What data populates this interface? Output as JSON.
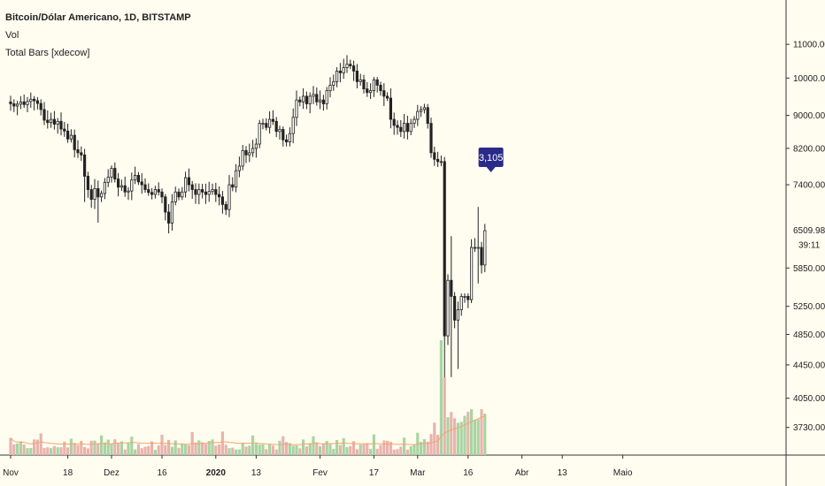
{
  "legend": {
    "title": "Bitcoin/Dólar Americano, 1D, BITSTAMP",
    "vol": "Vol",
    "indicator": "Total Bars [xdecow]"
  },
  "colors": {
    "background": "#fffdf0",
    "candle_up": "#ffffff",
    "candle_down": "#222222",
    "vol_up": "#a9d4a3",
    "vol_down": "#e8b4ae",
    "vol_ma": "#f2a46e",
    "label_bg": "#2a2a8a"
  },
  "chart_data": {
    "type": "candlestick",
    "y_axis": {
      "scale": "log",
      "range": [
        3450,
        11800
      ],
      "ticks": [
        "11000.00",
        "10000.00",
        "9000.00",
        "8200.00",
        "7400.00",
        "5850.00",
        "5250.00",
        "4850.00",
        "4450.00",
        "4050.00",
        "3730.00"
      ],
      "current_price": "6509.98",
      "countdown": "39:11"
    },
    "x_axis": {
      "ticks": [
        {
          "label": "Nov",
          "day": 0,
          "bold": false
        },
        {
          "label": "18",
          "day": 17,
          "bold": false
        },
        {
          "label": "Dez",
          "day": 30,
          "bold": false
        },
        {
          "label": "16",
          "day": 45,
          "bold": false
        },
        {
          "label": "2020",
          "day": 61,
          "bold": true
        },
        {
          "label": "13",
          "day": 73,
          "bold": false
        },
        {
          "label": "Fev",
          "day": 92,
          "bold": false
        },
        {
          "label": "17",
          "day": 108,
          "bold": false
        },
        {
          "label": "Mar",
          "day": 121,
          "bold": false
        },
        {
          "label": "16",
          "day": 136,
          "bold": false
        },
        {
          "label": "Abr",
          "day": 152,
          "bold": false
        },
        {
          "label": "13",
          "day": 164,
          "bold": false
        },
        {
          "label": "Maio",
          "day": 182,
          "bold": false
        }
      ]
    },
    "annotation": {
      "text": "3,105",
      "day": 142
    },
    "closes": [
      9300,
      9240,
      9290,
      9350,
      9280,
      9360,
      9420,
      9380,
      9310,
      9150,
      8880,
      8820,
      8900,
      8780,
      8850,
      8660,
      8610,
      8420,
      8510,
      8170,
      8100,
      8050,
      7580,
      7300,
      7100,
      7320,
      7150,
      7220,
      7450,
      7560,
      7750,
      7520,
      7350,
      7380,
      7250,
      7270,
      7500,
      7600,
      7460,
      7400,
      7300,
      7240,
      7200,
      7300,
      7250,
      7150,
      6850,
      6640,
      7050,
      7250,
      7150,
      7250,
      7550,
      7400,
      7300,
      7200,
      7300,
      7250,
      7200,
      7260,
      7300,
      7200,
      7150,
      7000,
      6900,
      7400,
      7350,
      7700,
      7800,
      8150,
      8050,
      8100,
      8200,
      8300,
      8800,
      8800,
      8700,
      8900,
      8850,
      8600,
      8650,
      8400,
      8350,
      8550,
      8950,
      9400,
      9350,
      9500,
      9300,
      9500,
      9550,
      9350,
      9400,
      9300,
      9650,
      9800,
      9900,
      10200,
      10150,
      10300,
      10400,
      10350,
      10200,
      9900,
      9950,
      9700,
      9600,
      9650,
      9950,
      9800,
      9650,
      9500,
      9450,
      8900,
      8750,
      8700,
      8600,
      8800,
      8600,
      8800,
      8900,
      9100,
      9150,
      9200,
      8800,
      8100,
      7950,
      7900,
      7900,
      4830,
      5650,
      5400,
      5050,
      5200,
      5400,
      5400,
      5350,
      6200,
      6200,
      6200,
      5900,
      6500
    ]
  }
}
